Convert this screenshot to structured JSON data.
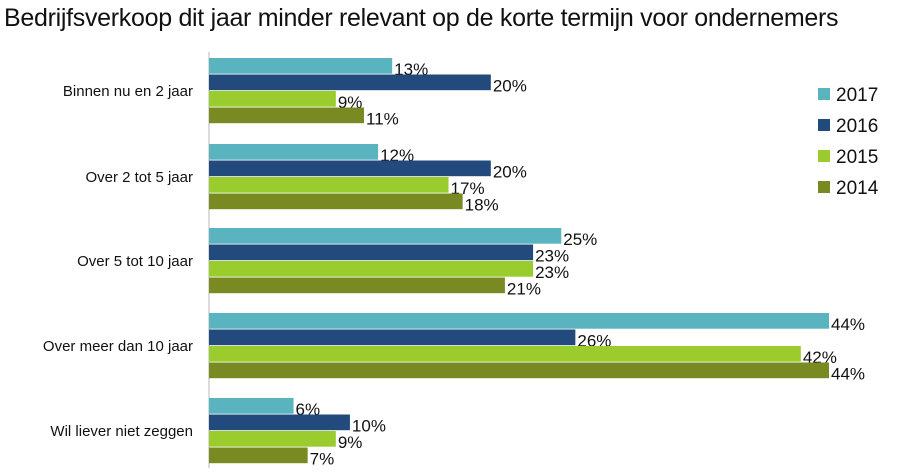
{
  "chart_data": {
    "type": "bar",
    "orientation": "horizontal",
    "title": "Bedrijfsverkoop dit jaar minder relevant op de korte termijn voor ondernemers",
    "xlabel": "",
    "ylabel": "",
    "xlim": [
      0,
      44
    ],
    "grid": false,
    "legend_position": "right",
    "categories": [
      "Binnen nu en 2 jaar",
      "Over 2 tot 5 jaar",
      "Over 5 tot 10 jaar",
      "Over meer dan 10 jaar",
      "Wil liever niet zeggen"
    ],
    "series": [
      {
        "name": "2017",
        "color": "#5ab4c0",
        "values": [
          13,
          12,
          25,
          44,
          6
        ],
        "labels": [
          "13%",
          "12%",
          "25%",
          "44%",
          "6%"
        ]
      },
      {
        "name": "2016",
        "color": "#224a7d",
        "values": [
          20,
          20,
          23,
          26,
          10
        ],
        "labels": [
          "20%",
          "20%",
          "23%",
          "26%",
          "10%"
        ]
      },
      {
        "name": "2015",
        "color": "#9acc2e",
        "values": [
          9,
          17,
          23,
          42,
          9
        ],
        "labels": [
          "9%",
          "17%",
          "23%",
          "42%",
          "9%"
        ]
      },
      {
        "name": "2014",
        "color": "#7a8a22",
        "values": [
          11,
          18,
          21,
          44,
          7
        ],
        "labels": [
          "11%",
          "18%",
          "21%",
          "44%",
          "7%"
        ]
      }
    ]
  }
}
